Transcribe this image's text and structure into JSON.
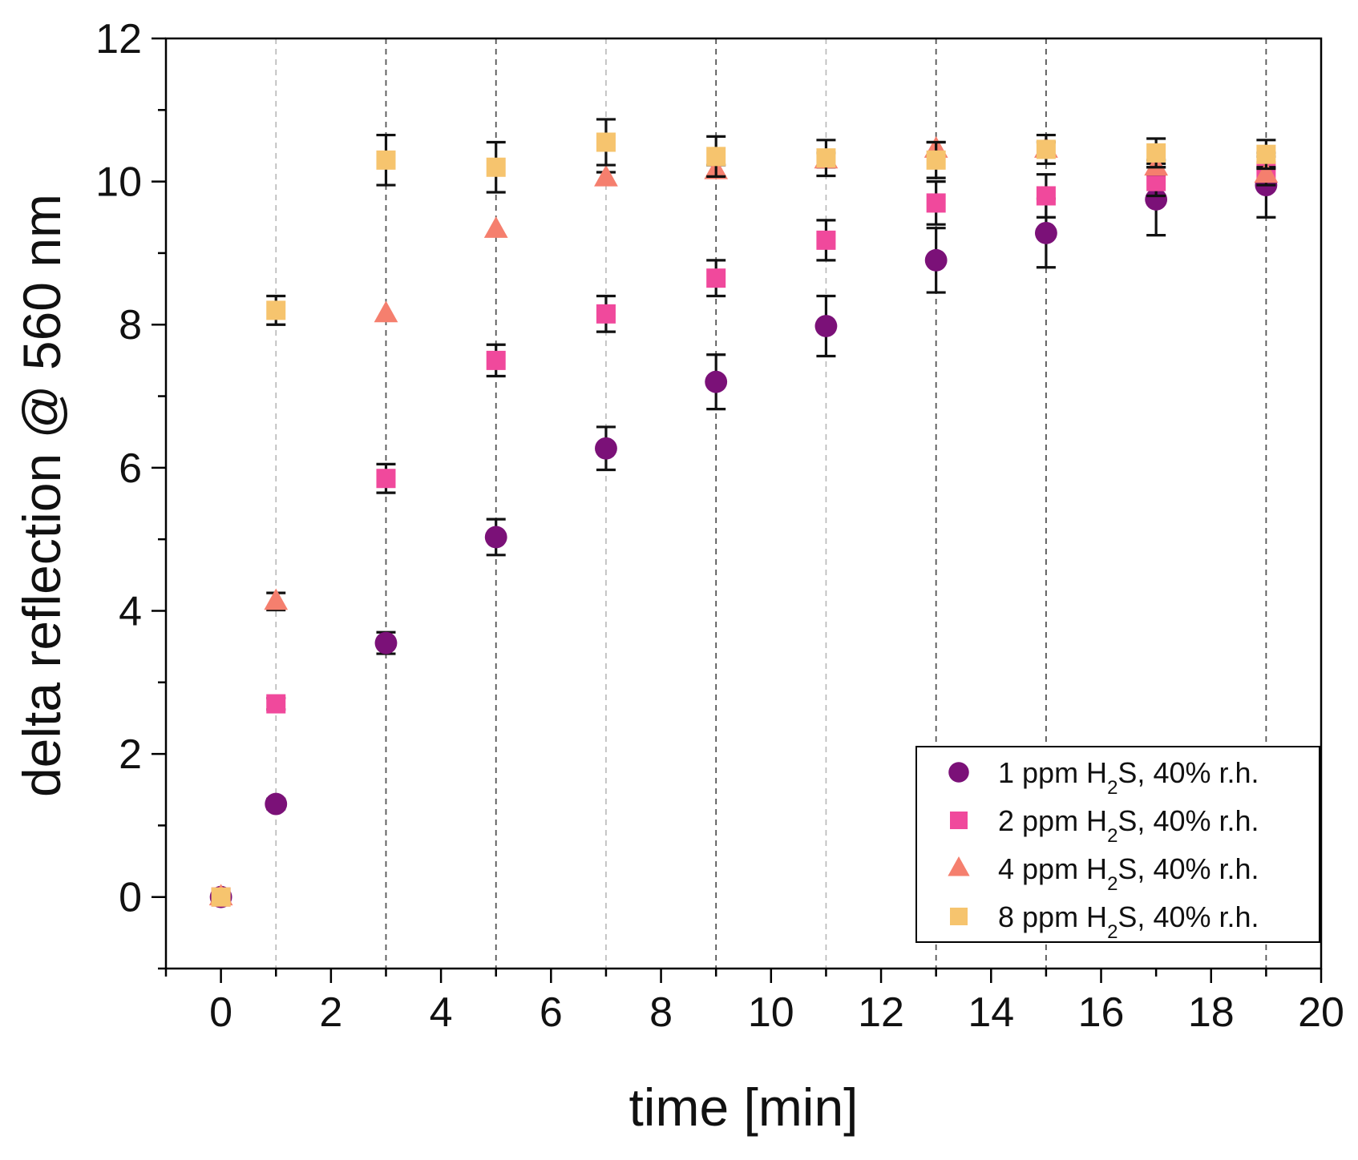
{
  "chart_data": {
    "type": "scatter",
    "title": "",
    "xlabel": "time [min]",
    "ylabel": "delta reflection @ 560 nm",
    "xlim": [
      -1,
      20
    ],
    "ylim": [
      -1,
      12
    ],
    "xticks": [
      0,
      2,
      4,
      6,
      8,
      10,
      12,
      14,
      16,
      18,
      20
    ],
    "yticks": [
      0,
      2,
      4,
      6,
      8,
      10,
      12
    ],
    "x_tick_labels": [
      "0",
      "2",
      "4",
      "6",
      "8",
      "10",
      "12",
      "14",
      "16",
      "18",
      "20"
    ],
    "y_tick_labels": [
      "0",
      "2",
      "4",
      "6",
      "8",
      "10",
      "12"
    ],
    "vertical_reference_lines": [
      1,
      3,
      5,
      7,
      9,
      11,
      13,
      15,
      19
    ],
    "legend_position": "bottom-right",
    "series": [
      {
        "name": "1 ppm H2S, 40% r.h.",
        "legend_parts": [
          "1 ppm H",
          "2",
          "S, 40% r.h."
        ],
        "marker": "circle",
        "color": "#7B1178",
        "x": [
          0,
          1,
          3,
          5,
          7,
          9,
          11,
          13,
          15,
          17,
          19
        ],
        "y": [
          0,
          1.3,
          3.55,
          5.03,
          6.27,
          7.2,
          7.98,
          8.9,
          9.28,
          9.75,
          9.95
        ],
        "err": [
          0.05,
          0.07,
          0.15,
          0.25,
          0.3,
          0.38,
          0.42,
          0.45,
          0.48,
          0.5,
          0.45
        ]
      },
      {
        "name": "2 ppm H2S, 40% r.h.",
        "legend_parts": [
          "2 ppm H",
          "2",
          "S, 40% r.h."
        ],
        "marker": "square",
        "color": "#F0499C",
        "x": [
          0,
          1,
          3,
          5,
          7,
          9,
          11,
          13,
          15,
          17,
          19
        ],
        "y": [
          0,
          2.7,
          5.85,
          7.5,
          8.15,
          8.65,
          9.18,
          9.7,
          9.8,
          10.0,
          10.15
        ],
        "err": [
          0.05,
          0.08,
          0.2,
          0.22,
          0.25,
          0.25,
          0.28,
          0.3,
          0.3,
          0.2,
          0.2
        ]
      },
      {
        "name": "4 ppm H2S, 40% r.h.",
        "legend_parts": [
          "4 ppm H",
          "2",
          "S, 40% r.h."
        ],
        "marker": "triangle",
        "color": "#F57F6E",
        "x": [
          0,
          1,
          3,
          5,
          7,
          9,
          11,
          13,
          15,
          17,
          19
        ],
        "y": [
          0,
          4.13,
          8.15,
          9.33,
          10.05,
          10.15,
          10.3,
          10.45,
          10.45,
          10.2,
          10.1
        ],
        "err": [
          0.05,
          0.12,
          0.06,
          0.06,
          0.08,
          0.08,
          0.1,
          0.1,
          0.1,
          0.1,
          0.1
        ]
      },
      {
        "name": "8 ppm H2S, 40% r.h.",
        "legend_parts": [
          "8 ppm H",
          "2",
          "S, 40% r.h."
        ],
        "marker": "square",
        "color": "#F6C46E",
        "x": [
          0,
          1,
          3,
          5,
          7,
          9,
          11,
          13,
          15,
          17,
          19
        ],
        "y": [
          0,
          8.2,
          10.3,
          10.2,
          10.55,
          10.35,
          10.33,
          10.3,
          10.45,
          10.4,
          10.38
        ],
        "err": [
          0.05,
          0.2,
          0.35,
          0.35,
          0.32,
          0.28,
          0.25,
          0.25,
          0.2,
          0.2,
          0.2
        ]
      }
    ]
  }
}
